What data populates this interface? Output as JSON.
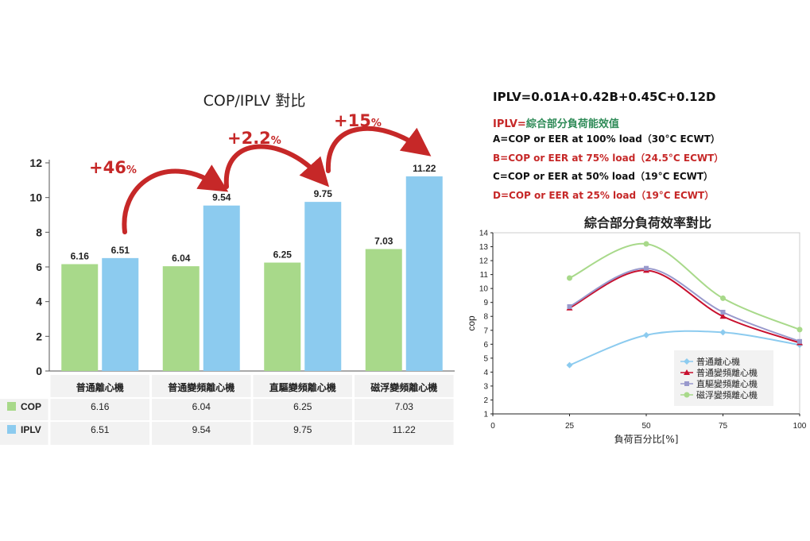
{
  "left": {
    "title": "COP/IPLV 對比",
    "row_cop": "COP",
    "row_iplv": "IPLV",
    "increases": [
      "+46",
      "+2.2",
      "+15"
    ],
    "pct_unit": "%"
  },
  "right": {
    "formula": "IPLV=0.01A+0.42B+0.45C+0.12D",
    "iplv_lead": "IPLV=",
    "iplv_text": "綜合部分負荷能效值",
    "defs": [
      {
        "text": "A=COP or EER at 100% load（30°C ECWT）",
        "color": "#111111"
      },
      {
        "text": "B=COP or EER at 75% load（24.5°C ECWT）",
        "color": "#c62828"
      },
      {
        "text": "C=COP or EER at 50% load（19°C ECWT）",
        "color": "#111111"
      },
      {
        "text": "D=COP or EER at 25% load（19°C ECWT）",
        "color": "#c62828"
      }
    ],
    "line_title": "綜合部分負荷效率對比"
  },
  "colors": {
    "cop": "#a8d98a",
    "iplv": "#8ccbef",
    "accent_red": "#c62828"
  },
  "chart_data": [
    {
      "type": "bar",
      "title": "COP/IPLV 對比",
      "categories": [
        "普通離心機",
        "普通變頻離心機",
        "直驅變頻離心機",
        "磁浮變頻離心機"
      ],
      "series": [
        {
          "name": "COP",
          "values": [
            6.16,
            6.04,
            6.25,
            7.03
          ],
          "labels": [
            "6.16",
            "6.04",
            "6.25",
            "7.03"
          ],
          "color": "#a8d98a"
        },
        {
          "name": "IPLV",
          "values": [
            6.51,
            9.54,
            9.75,
            11.22
          ],
          "labels": [
            "6.51",
            "9.54",
            "9.75",
            "11.22"
          ],
          "color": "#8ccbef"
        }
      ],
      "ylim": [
        0,
        12
      ],
      "yticks": [
        0,
        2,
        4,
        6,
        8,
        10,
        12
      ],
      "annotations": [
        "+46%",
        "+2.2%",
        "+15%"
      ],
      "data_table": true
    },
    {
      "type": "line",
      "title": "綜合部分負荷效率對比",
      "xlabel": "負荷百分比[%]",
      "ylabel": "cop",
      "x": [
        25,
        50,
        75,
        100
      ],
      "xlim": [
        0,
        100
      ],
      "xticks": [
        0,
        25,
        50,
        75,
        100
      ],
      "ylim": [
        1,
        14
      ],
      "yticks": [
        1,
        2,
        3,
        4,
        5,
        6,
        7,
        8,
        9,
        10,
        11,
        12,
        13,
        14
      ],
      "legend": "lower-right",
      "grid": false,
      "series": [
        {
          "name": "普通離心機",
          "values": [
            4.5,
            6.65,
            6.85,
            5.95
          ],
          "color": "#8ccbef",
          "marker": "diamond"
        },
        {
          "name": "普通變頻離心機",
          "values": [
            8.6,
            11.3,
            8.0,
            6.1
          ],
          "color": "#c8102e",
          "marker": "triangle"
        },
        {
          "name": "直驅變頻離心機",
          "values": [
            8.7,
            11.45,
            8.3,
            6.2
          ],
          "color": "#9999cc",
          "marker": "x"
        },
        {
          "name": "磁浮變頻離心機",
          "values": [
            10.75,
            13.2,
            9.3,
            7.05
          ],
          "color": "#a8d98a",
          "marker": "circle"
        }
      ]
    }
  ]
}
